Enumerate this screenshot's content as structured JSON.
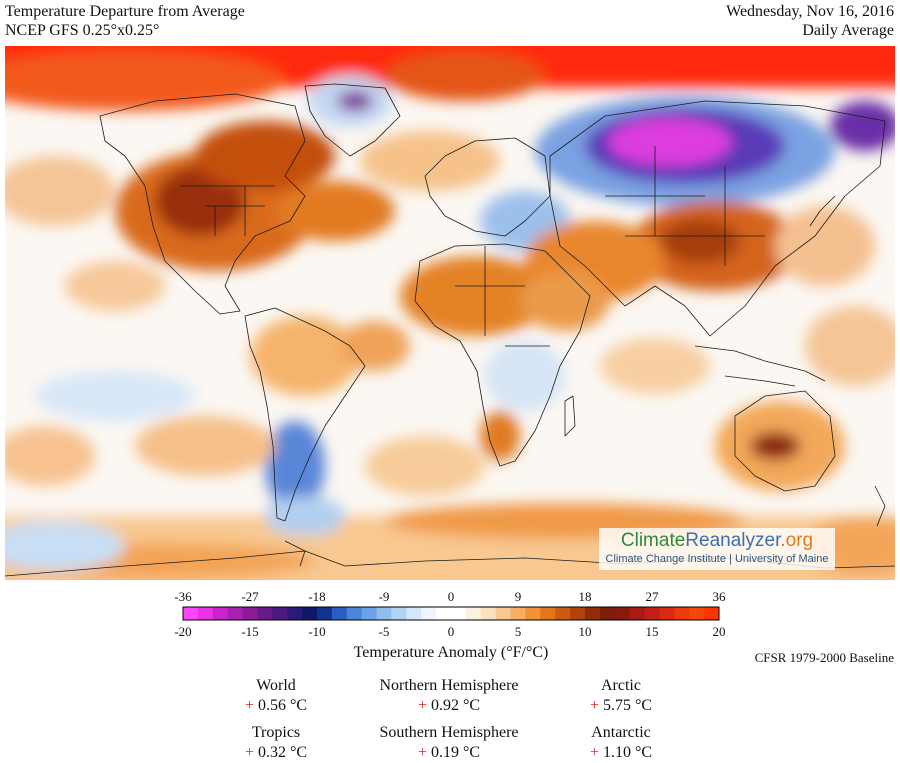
{
  "header": {
    "title": "Temperature Departure from Average",
    "model": "NCEP GFS 0.25°x0.25°",
    "date": "Wednesday, Nov 16, 2016",
    "period": "Daily Average"
  },
  "branding": {
    "name_part1": "Climate",
    "name_part2": "Reanalyzer",
    "name_part3": ".org",
    "subtitle": "Climate Change Institute | University of Maine"
  },
  "legend": {
    "title": "Temperature Anomaly (°F/°C)",
    "f_ticks": [
      -36,
      -27,
      -18,
      -9,
      0,
      9,
      18,
      27,
      36
    ],
    "c_ticks": [
      -20,
      -15,
      -10,
      -5,
      0,
      5,
      10,
      15,
      20
    ],
    "colors": [
      "#ff44ff",
      "#e833e8",
      "#cc22cc",
      "#aa1fb3",
      "#8c1a99",
      "#6b1a8c",
      "#4a1a80",
      "#2b1a78",
      "#111866",
      "#14338f",
      "#2a5cc4",
      "#4a85da",
      "#6aa4e6",
      "#8fbdee",
      "#b3d3f5",
      "#d4e6fa",
      "#eef5fd",
      "#ffffff",
      "#ffffff",
      "#fdf1e2",
      "#fbe0c0",
      "#f8c890",
      "#f5ae62",
      "#f09236",
      "#e27618",
      "#cc5a10",
      "#b0420a",
      "#902e08",
      "#7a1e08",
      "#8a1a10",
      "#a81a14",
      "#c41f14",
      "#da2a12",
      "#ea3a0e",
      "#f5470a",
      "#ff3300"
    ],
    "baseline": "CFSR 1979-2000 Baseline"
  },
  "stats": [
    {
      "label": "World",
      "sign": "+",
      "value": "0.56 °C"
    },
    {
      "label": "Northern Hemisphere",
      "sign": "+",
      "value": "0.92 °C"
    },
    {
      "label": "Arctic",
      "sign": "+",
      "value": "5.75 °C"
    },
    {
      "label": "Tropics",
      "sign": "+",
      "value": "0.32 °C"
    },
    {
      "label": "Southern Hemisphere",
      "sign": "+",
      "value": "0.19 °C"
    },
    {
      "label": "Antarctic",
      "sign": "+",
      "value": "1.10 °C"
    }
  ]
}
